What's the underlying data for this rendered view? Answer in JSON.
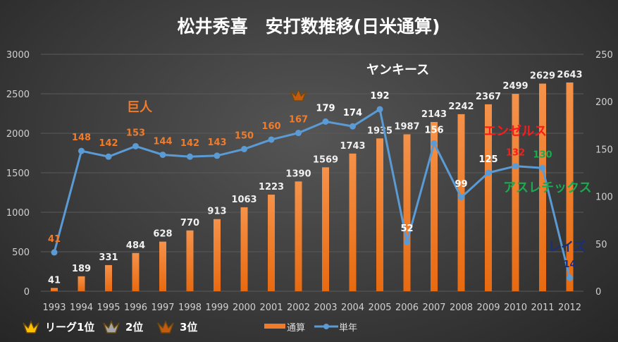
{
  "chart_data": {
    "type": "bar+line",
    "title": "松井秀喜　安打数推移(日米通算)",
    "categories": [
      "1993",
      "1994",
      "1995",
      "1996",
      "1997",
      "1998",
      "1999",
      "2000",
      "2001",
      "2002",
      "2003",
      "2004",
      "2005",
      "2006",
      "2007",
      "2008",
      "2009",
      "2010",
      "2011",
      "2012"
    ],
    "series": [
      {
        "name": "通算",
        "type": "bar",
        "axis": "left",
        "color": "#f07b2a",
        "values": [
          41,
          189,
          331,
          484,
          628,
          770,
          913,
          1063,
          1223,
          1390,
          1569,
          1743,
          1935,
          1987,
          2143,
          2242,
          2367,
          2499,
          2629,
          2643
        ]
      },
      {
        "name": "単年",
        "type": "line",
        "axis": "right",
        "color": "#5b9bd5",
        "values": [
          41,
          148,
          142,
          153,
          144,
          142,
          143,
          150,
          160,
          167,
          179,
          174,
          192,
          52,
          156,
          99,
          125,
          132,
          130,
          14
        ]
      }
    ],
    "label_colors": [
      "#f07b2a",
      "#f07b2a",
      "#f07b2a",
      "#f07b2a",
      "#f07b2a",
      "#f07b2a",
      "#f07b2a",
      "#f07b2a",
      "#f07b2a",
      "#f07b2a",
      "#ffffff",
      "#ffffff",
      "#ffffff",
      "#ffffff",
      "#ffffff",
      "#ffffff",
      "#ffffff",
      "#ff1a1a",
      "#1aaa50",
      "#1a2f7a"
    ],
    "ylim_left": [
      0,
      3000
    ],
    "yticks_left": [
      0,
      500,
      1000,
      1500,
      2000,
      2500,
      3000
    ],
    "ylim_right": [
      0,
      250
    ],
    "yticks_right": [
      0,
      50,
      100,
      150,
      200,
      250
    ],
    "grid": true,
    "legend": {
      "placement": "bottom-right",
      "items": [
        "通算",
        "単年"
      ]
    },
    "teams": [
      {
        "name": "巨人",
        "color": "#f07b2a"
      },
      {
        "name": "ヤンキース",
        "color": "#ffffff"
      },
      {
        "name": "エンゼルス",
        "color": "#ff1a1a"
      },
      {
        "name": "アスレチックス",
        "color": "#1aaa50"
      },
      {
        "name": "レイズ",
        "color": "#1a2f7a"
      }
    ],
    "rank_legend": [
      {
        "label": "リーグ1位",
        "color": "#ffc000"
      },
      {
        "label": "2位",
        "color": "#a6a6a6"
      },
      {
        "label": "3位",
        "color": "#c55a11"
      }
    ],
    "crowns": [
      {
        "year": "2002",
        "rank": 3
      }
    ]
  }
}
